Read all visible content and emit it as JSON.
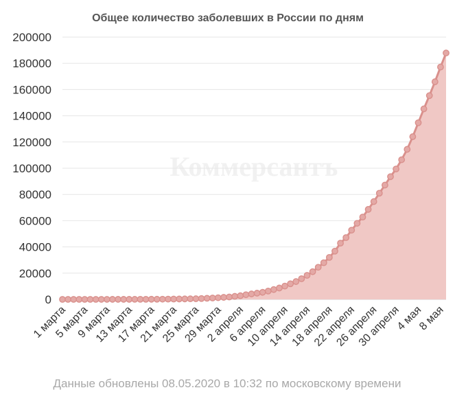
{
  "chart_data": {
    "type": "area",
    "title": "Общее количество заболевших в России по дням",
    "watermark": "Коммерсантъ",
    "footer": "Данные обновлены 08.05.2020 в 10:32 по московскому времени",
    "xlabel": "",
    "ylabel": "",
    "ylim": [
      0,
      200000
    ],
    "yticks": [
      0,
      20000,
      40000,
      60000,
      80000,
      100000,
      120000,
      140000,
      160000,
      180000,
      200000
    ],
    "ytick_labels": [
      "0",
      "20000",
      "40000",
      "60000",
      "80000",
      "100000",
      "120000",
      "140000",
      "160000",
      "180000",
      "200000"
    ],
    "x_tick_labels": [
      {
        "index": 0,
        "label": "1 марта"
      },
      {
        "index": 4,
        "label": "5 марта"
      },
      {
        "index": 8,
        "label": "9 марта"
      },
      {
        "index": 12,
        "label": "13 марта"
      },
      {
        "index": 16,
        "label": "17 марта"
      },
      {
        "index": 20,
        "label": "21 марта"
      },
      {
        "index": 24,
        "label": "25 марта"
      },
      {
        "index": 28,
        "label": "29 марта"
      },
      {
        "index": 32,
        "label": "2 апреля"
      },
      {
        "index": 36,
        "label": "6 апреля"
      },
      {
        "index": 40,
        "label": "10 апреля"
      },
      {
        "index": 44,
        "label": "14 апреля"
      },
      {
        "index": 48,
        "label": "18 апреля"
      },
      {
        "index": 52,
        "label": "22 апреля"
      },
      {
        "index": 56,
        "label": "26 апреля"
      },
      {
        "index": 60,
        "label": "30 апреля"
      },
      {
        "index": 64,
        "label": "4 мая"
      },
      {
        "index": 68,
        "label": "8 мая"
      }
    ],
    "grid": true,
    "legend": "none",
    "colors": {
      "line": "#d9908c",
      "area": "#f0c8c5",
      "marker_fill": "#e4a9a6"
    },
    "series": [
      {
        "values": [
          2,
          3,
          3,
          3,
          4,
          10,
          13,
          17,
          17,
          20,
          20,
          28,
          34,
          45,
          59,
          63,
          93,
          114,
          147,
          199,
          253,
          306,
          367,
          438,
          495,
          658,
          840,
          1036,
          1264,
          1534,
          1836,
          2337,
          2777,
          3548,
          4149,
          4731,
          5389,
          6343,
          7497,
          8672,
          10131,
          11917,
          13584,
          15770,
          18328,
          21102,
          24490,
          27938,
          32008,
          36793,
          42853,
          47121,
          52763,
          57999,
          62773,
          68622,
          74588,
          80949,
          87147,
          93558,
          99399,
          106498,
          114431,
          124054,
          134686,
          145268,
          155370,
          165929,
          177160,
          187859
        ]
      }
    ]
  }
}
